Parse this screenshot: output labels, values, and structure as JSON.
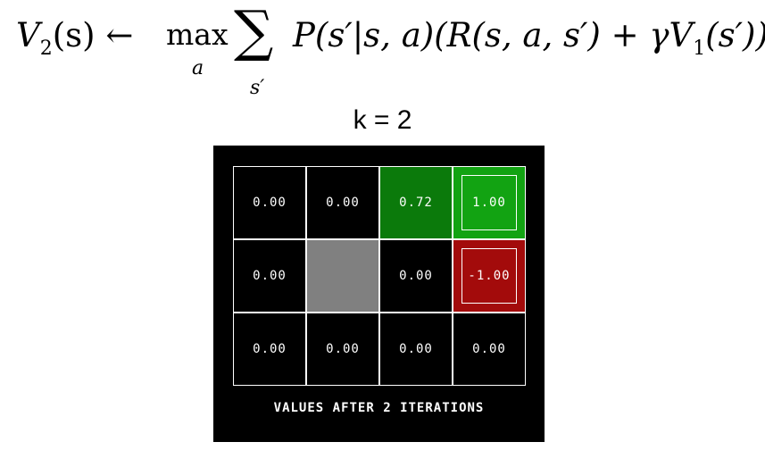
{
  "formula": {
    "lhs": "V",
    "lhs_sub": "2",
    "lhs_arg": "(s)",
    "arrow": "←",
    "max": "max",
    "max_sub": "a",
    "sigma": "∑",
    "sigma_sub": "s′",
    "body_pre": "P(s′|s, a)(R(s, a, s′) + γV",
    "body_sub": "1",
    "body_post": "(s′))"
  },
  "iteration_label": "k = 2",
  "gridworld": {
    "caption": "VALUES AFTER 2 ITERATIONS",
    "cells": [
      {
        "row": 0,
        "col": 0,
        "value": "0.00",
        "color": "#000000",
        "terminal": false
      },
      {
        "row": 0,
        "col": 1,
        "value": "0.00",
        "color": "#000000",
        "terminal": false
      },
      {
        "row": 0,
        "col": 2,
        "value": "0.72",
        "color": "#0b7a0b",
        "terminal": false
      },
      {
        "row": 0,
        "col": 3,
        "value": "1.00",
        "color": "#12a312",
        "terminal": true
      },
      {
        "row": 1,
        "col": 0,
        "value": "0.00",
        "color": "#000000",
        "terminal": false
      },
      {
        "row": 1,
        "col": 1,
        "value": "",
        "color": "#808080",
        "terminal": false,
        "wall": true
      },
      {
        "row": 1,
        "col": 2,
        "value": "0.00",
        "color": "#000000",
        "terminal": false
      },
      {
        "row": 1,
        "col": 3,
        "value": "-1.00",
        "color": "#a30b0b",
        "terminal": true
      },
      {
        "row": 2,
        "col": 0,
        "value": "0.00",
        "color": "#000000",
        "terminal": false
      },
      {
        "row": 2,
        "col": 1,
        "value": "0.00",
        "color": "#000000",
        "terminal": false
      },
      {
        "row": 2,
        "col": 2,
        "value": "0.00",
        "color": "#000000",
        "terminal": false
      },
      {
        "row": 2,
        "col": 3,
        "value": "0.00",
        "color": "#000000",
        "terminal": false
      }
    ]
  }
}
